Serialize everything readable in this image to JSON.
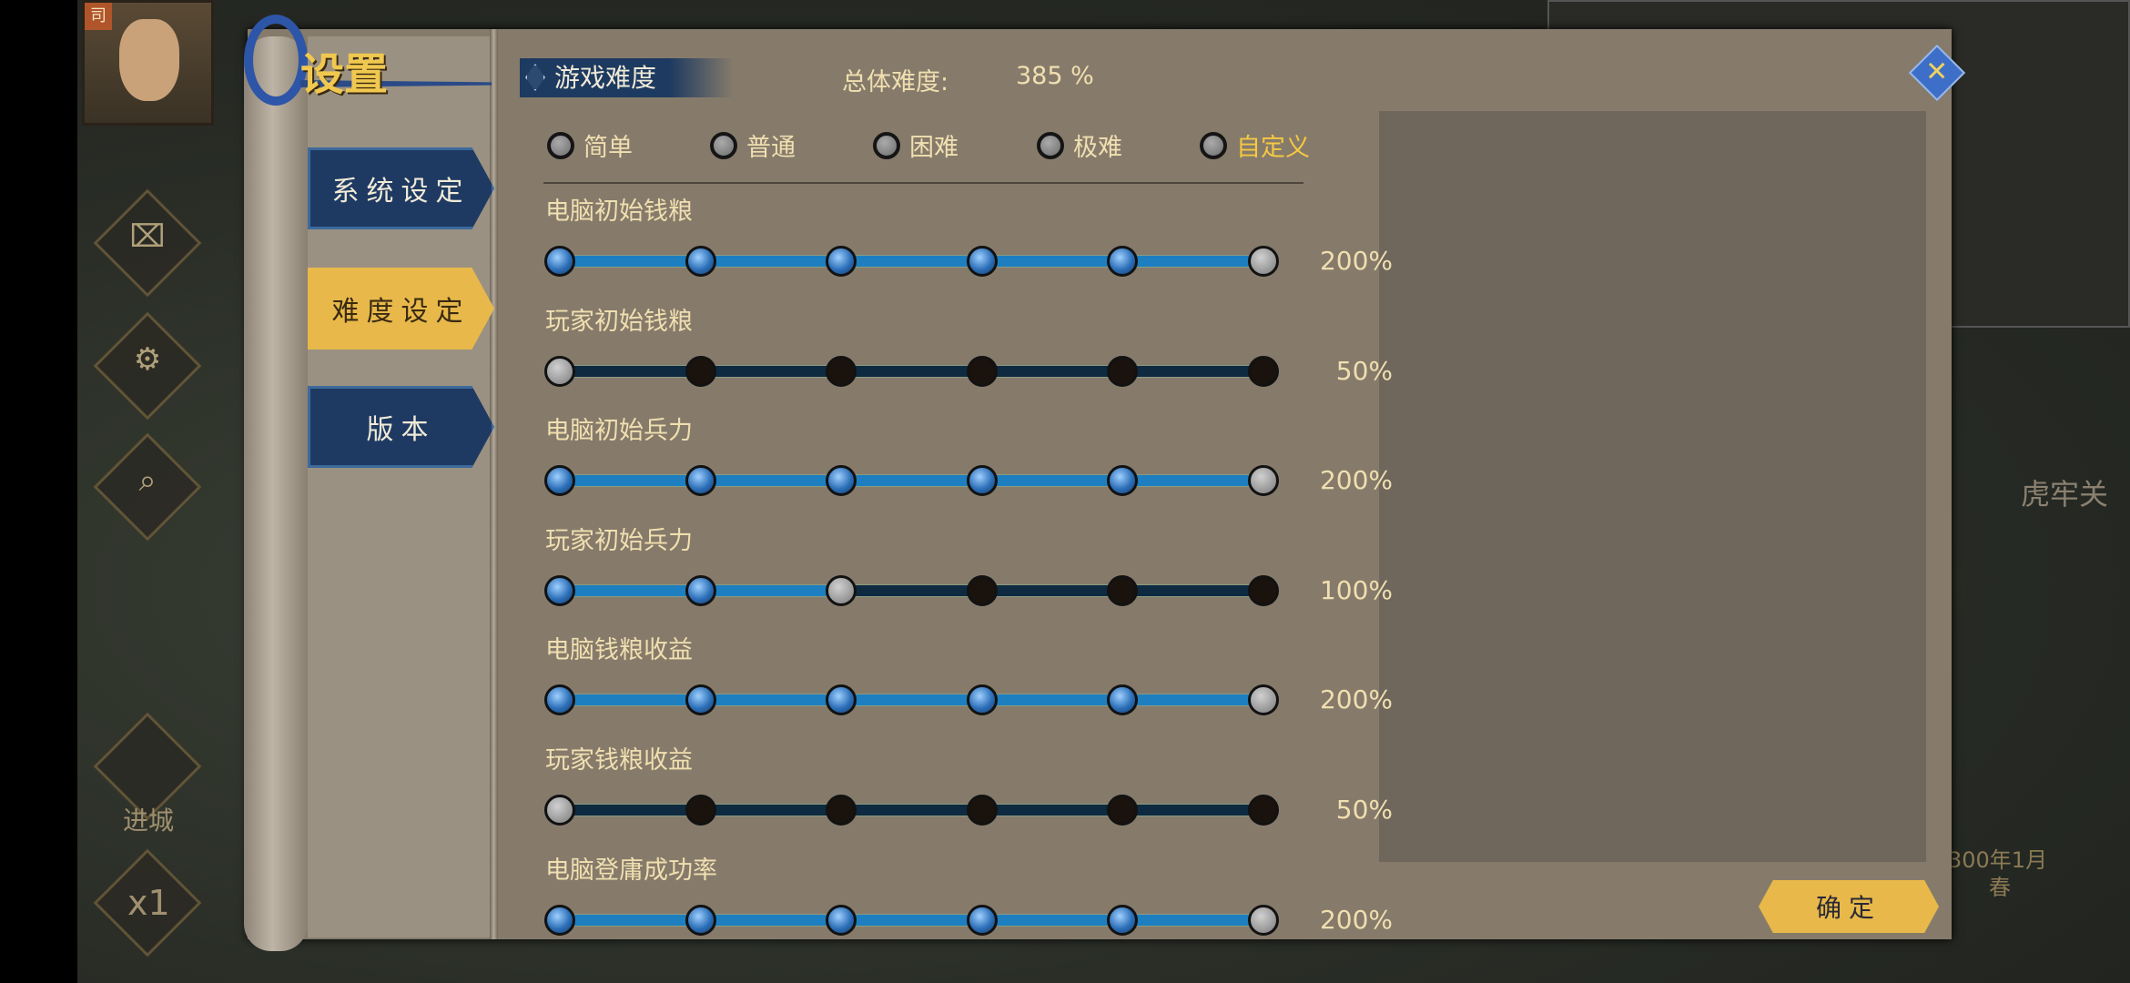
{
  "background": {
    "portrait_tag": "司",
    "enter_city_label": "进城",
    "speed_label": "x1",
    "pass_label": "虎牢关",
    "date_label": "300年1月",
    "season_label": "春"
  },
  "dialog": {
    "title": "设置",
    "nav": [
      {
        "label": "系统设定",
        "active": false
      },
      {
        "label": "难度设定",
        "active": true
      },
      {
        "label": "版本",
        "active": false
      }
    ],
    "section_tab": "游戏难度",
    "total_difficulty_label": "总体难度:",
    "total_difficulty_value": "385 %",
    "presets": [
      {
        "label": "简单",
        "selected": false
      },
      {
        "label": "普通",
        "selected": false
      },
      {
        "label": "困难",
        "selected": false
      },
      {
        "label": "极难",
        "selected": false
      },
      {
        "label": "自定义",
        "selected": true
      }
    ],
    "settings": [
      {
        "label": "电脑初始钱粮",
        "value": "200%",
        "level_index": 5
      },
      {
        "label": "玩家初始钱粮",
        "value": "50%",
        "level_index": 0
      },
      {
        "label": "电脑初始兵力",
        "value": "200%",
        "level_index": 5
      },
      {
        "label": "玩家初始兵力",
        "value": "100%",
        "level_index": 2
      },
      {
        "label": "电脑钱粮收益",
        "value": "200%",
        "level_index": 5
      },
      {
        "label": "玩家钱粮收益",
        "value": "50%",
        "level_index": 0
      },
      {
        "label": "电脑登庸成功率",
        "value": "200%",
        "level_index": 5
      }
    ],
    "slider_stops": 6,
    "confirm_label": "确定",
    "close_icon": "close-x-icon"
  },
  "colors": {
    "accent_gold": "#f5c842",
    "text": "#f0dfb0",
    "slider_fill": "#1e7fc0",
    "slider_empty": "#0e2a40"
  }
}
